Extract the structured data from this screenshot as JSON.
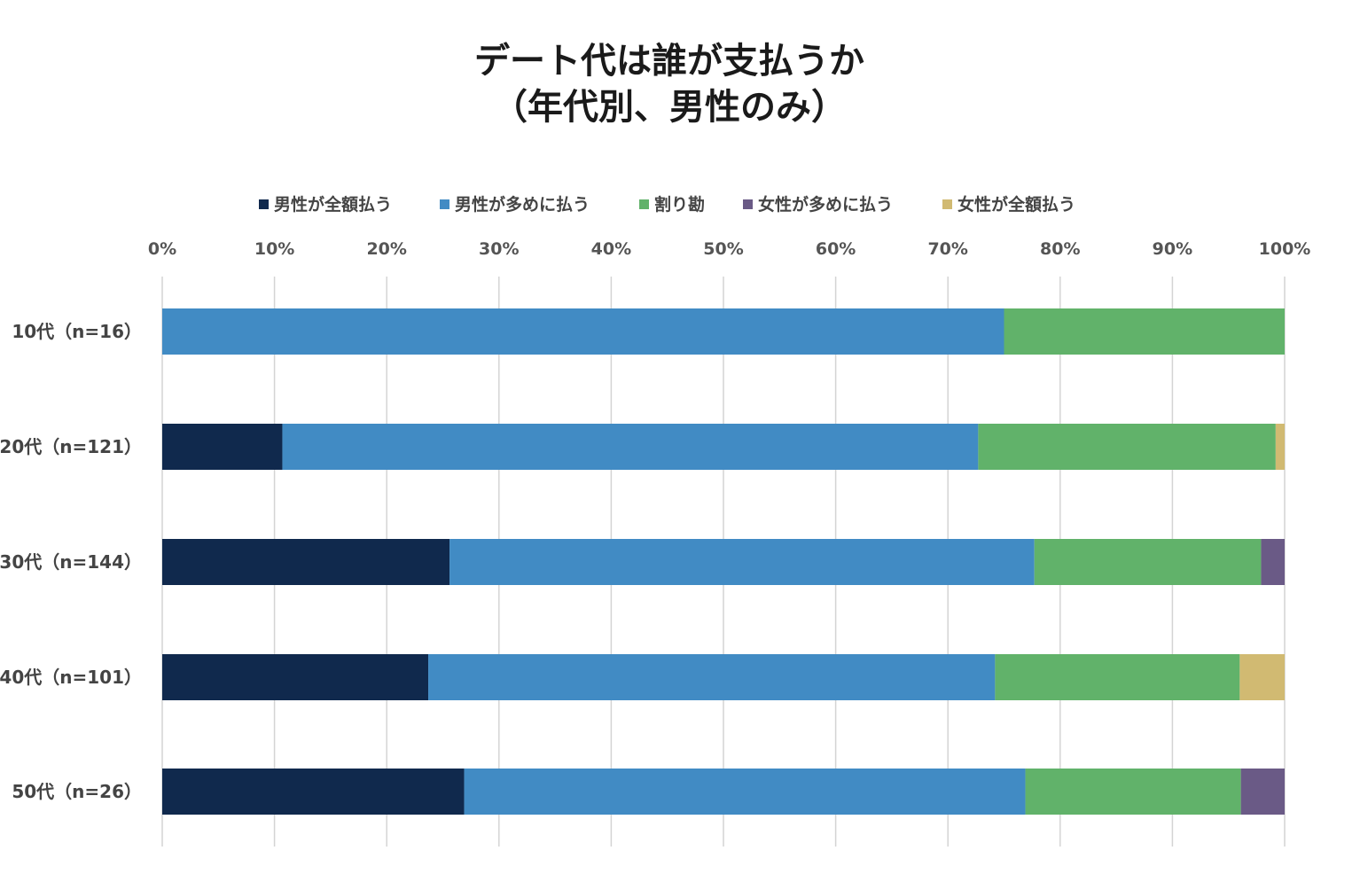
{
  "chart_data": {
    "type": "bar",
    "orientation": "horizontal",
    "stacked": "percent",
    "title": [
      "デート代は誰が支払うか",
      "（年代別、男性のみ）"
    ],
    "categories": [
      "10代（n=16）",
      "20代（n=121）",
      "30代（n=144）",
      "40代（n=101）",
      "50代（n=26）"
    ],
    "series": [
      {
        "name": "男性が全額払う",
        "color": "#10294d",
        "values": [
          0,
          10.7,
          25.6,
          23.7,
          26.9
        ]
      },
      {
        "name": "男性が多めに払う",
        "color": "#418bc4",
        "values": [
          75.0,
          62.0,
          52.1,
          50.5,
          50.0
        ]
      },
      {
        "name": "割り勘",
        "color": "#61b26a",
        "values": [
          25.0,
          26.5,
          20.2,
          21.8,
          19.2
        ]
      },
      {
        "name": "女性が多めに払う",
        "color": "#6a5a86",
        "values": [
          0,
          0,
          2.1,
          0,
          3.9
        ]
      },
      {
        "name": "女性が全額払う",
        "color": "#d1ba72",
        "values": [
          0,
          0.8,
          0,
          4.0,
          0
        ]
      }
    ],
    "xlim": [
      0,
      100
    ],
    "ticks": [
      "0%",
      "10%",
      "20%",
      "30%",
      "40%",
      "50%",
      "60%",
      "70%",
      "80%",
      "90%",
      "100%"
    ],
    "tick_values": [
      0,
      10,
      20,
      30,
      40,
      50,
      60,
      70,
      80,
      90,
      100
    ],
    "grid": "vertical",
    "legend_position": "top"
  }
}
